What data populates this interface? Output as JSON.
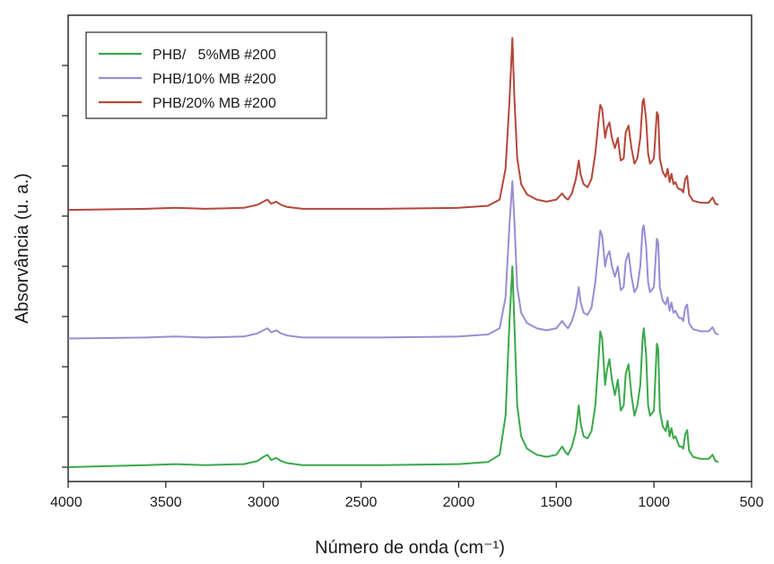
{
  "chart_data": {
    "type": "line",
    "title": "",
    "xlabel": "Número de onda (cm⁻¹)",
    "ylabel": "Absorvância (u. a.)",
    "xlim": [
      4000,
      500
    ],
    "x_reversed": true,
    "ylim": [
      0,
      4.2
    ],
    "x_ticks": [
      "4000",
      "3500",
      "3000",
      "2500",
      "2000",
      "1500",
      "1000",
      "500"
    ],
    "y_tick_count": 9,
    "grid": false,
    "y_tick_labels": false,
    "legend_position": "top-left",
    "series": [
      {
        "name": "PHB/   5%MB #200",
        "color": "#3aa84a",
        "x": [
          4000,
          3600,
          3450,
          3300,
          3100,
          3030,
          3000,
          2980,
          2960,
          2935,
          2910,
          2880,
          2800,
          2400,
          2000,
          1850,
          1790,
          1760,
          1740,
          1725,
          1715,
          1700,
          1680,
          1650,
          1600,
          1550,
          1500,
          1470,
          1455,
          1440,
          1420,
          1400,
          1385,
          1375,
          1360,
          1340,
          1320,
          1300,
          1282,
          1275,
          1265,
          1250,
          1240,
          1228,
          1215,
          1200,
          1185,
          1170,
          1155,
          1145,
          1130,
          1115,
          1100,
          1085,
          1070,
          1058,
          1052,
          1040,
          1030,
          1020,
          1000,
          985,
          978,
          970,
          955,
          940,
          930,
          920,
          910,
          900,
          890,
          880,
          870,
          860,
          850,
          840,
          830,
          820,
          800,
          760,
          720,
          700,
          685,
          670
        ],
        "y": [
          0.0,
          0.02,
          0.03,
          0.02,
          0.03,
          0.06,
          0.1,
          0.12,
          0.07,
          0.09,
          0.06,
          0.04,
          0.02,
          0.02,
          0.03,
          0.05,
          0.12,
          0.5,
          1.4,
          1.95,
          1.4,
          0.6,
          0.3,
          0.18,
          0.12,
          0.1,
          0.12,
          0.2,
          0.15,
          0.12,
          0.2,
          0.35,
          0.6,
          0.42,
          0.3,
          0.28,
          0.35,
          0.6,
          1.1,
          1.32,
          1.25,
          0.8,
          0.95,
          1.05,
          0.85,
          0.7,
          0.85,
          0.55,
          0.6,
          0.9,
          1.0,
          0.7,
          0.5,
          0.6,
          0.8,
          1.25,
          1.35,
          1.1,
          0.6,
          0.5,
          0.55,
          1.2,
          1.15,
          0.55,
          0.4,
          0.35,
          0.45,
          0.3,
          0.38,
          0.28,
          0.3,
          0.25,
          0.2,
          0.2,
          0.18,
          0.32,
          0.36,
          0.16,
          0.1,
          0.08,
          0.08,
          0.12,
          0.06,
          0.05
        ]
      },
      {
        "name": "PHB/10% MB #200",
        "color": "#9b8cd4",
        "x": [
          4000,
          3600,
          3450,
          3300,
          3100,
          3030,
          3000,
          2980,
          2960,
          2935,
          2910,
          2880,
          2800,
          2400,
          2000,
          1850,
          1790,
          1760,
          1740,
          1725,
          1715,
          1700,
          1680,
          1650,
          1600,
          1550,
          1500,
          1470,
          1455,
          1440,
          1420,
          1400,
          1385,
          1375,
          1360,
          1340,
          1320,
          1300,
          1282,
          1275,
          1265,
          1250,
          1240,
          1228,
          1215,
          1200,
          1185,
          1170,
          1155,
          1145,
          1130,
          1115,
          1100,
          1085,
          1070,
          1058,
          1052,
          1040,
          1030,
          1020,
          1000,
          985,
          978,
          970,
          955,
          940,
          930,
          920,
          910,
          900,
          890,
          880,
          870,
          860,
          850,
          840,
          830,
          820,
          800,
          760,
          720,
          700,
          685,
          670
        ],
        "y": [
          1.25,
          1.26,
          1.27,
          1.26,
          1.27,
          1.3,
          1.33,
          1.35,
          1.31,
          1.33,
          1.3,
          1.28,
          1.26,
          1.26,
          1.27,
          1.29,
          1.35,
          1.65,
          2.35,
          2.78,
          2.4,
          1.75,
          1.5,
          1.4,
          1.35,
          1.33,
          1.35,
          1.42,
          1.38,
          1.35,
          1.42,
          1.55,
          1.75,
          1.6,
          1.5,
          1.48,
          1.55,
          1.8,
          2.15,
          2.3,
          2.25,
          1.95,
          2.05,
          2.1,
          1.95,
          1.85,
          1.95,
          1.72,
          1.75,
          2.0,
          2.08,
          1.85,
          1.7,
          1.75,
          1.95,
          2.32,
          2.35,
          2.15,
          1.8,
          1.7,
          1.75,
          2.22,
          2.18,
          1.75,
          1.62,
          1.58,
          1.65,
          1.52,
          1.6,
          1.5,
          1.52,
          1.48,
          1.45,
          1.45,
          1.42,
          1.55,
          1.58,
          1.4,
          1.34,
          1.32,
          1.32,
          1.36,
          1.3,
          1.29
        ]
      },
      {
        "name": "PHB/20% MB #200",
        "color": "#b5473a",
        "x": [
          4000,
          3600,
          3450,
          3300,
          3100,
          3030,
          3000,
          2980,
          2960,
          2935,
          2910,
          2880,
          2800,
          2400,
          2000,
          1850,
          1790,
          1760,
          1740,
          1725,
          1715,
          1700,
          1680,
          1650,
          1600,
          1550,
          1500,
          1470,
          1455,
          1440,
          1420,
          1400,
          1385,
          1375,
          1360,
          1340,
          1320,
          1300,
          1282,
          1275,
          1265,
          1250,
          1240,
          1228,
          1215,
          1200,
          1185,
          1170,
          1155,
          1145,
          1130,
          1115,
          1100,
          1085,
          1070,
          1058,
          1052,
          1040,
          1030,
          1020,
          1000,
          985,
          978,
          970,
          955,
          940,
          930,
          920,
          910,
          900,
          890,
          880,
          870,
          860,
          850,
          840,
          830,
          820,
          800,
          760,
          720,
          700,
          685,
          670
        ],
        "y": [
          2.5,
          2.51,
          2.52,
          2.51,
          2.52,
          2.55,
          2.58,
          2.6,
          2.56,
          2.58,
          2.55,
          2.53,
          2.51,
          2.51,
          2.52,
          2.54,
          2.6,
          2.9,
          3.55,
          4.17,
          3.6,
          3.0,
          2.75,
          2.65,
          2.6,
          2.58,
          2.6,
          2.66,
          2.62,
          2.6,
          2.66,
          2.8,
          2.98,
          2.84,
          2.75,
          2.72,
          2.8,
          3.05,
          3.4,
          3.52,
          3.48,
          3.2,
          3.3,
          3.35,
          3.2,
          3.1,
          3.2,
          2.98,
          3.0,
          3.25,
          3.32,
          3.1,
          2.95,
          3.0,
          3.2,
          3.55,
          3.58,
          3.38,
          3.05,
          2.95,
          3.0,
          3.45,
          3.42,
          3.0,
          2.87,
          2.82,
          2.9,
          2.77,
          2.85,
          2.75,
          2.77,
          2.72,
          2.7,
          2.7,
          2.67,
          2.8,
          2.83,
          2.65,
          2.59,
          2.57,
          2.57,
          2.62,
          2.56,
          2.55
        ]
      }
    ]
  }
}
